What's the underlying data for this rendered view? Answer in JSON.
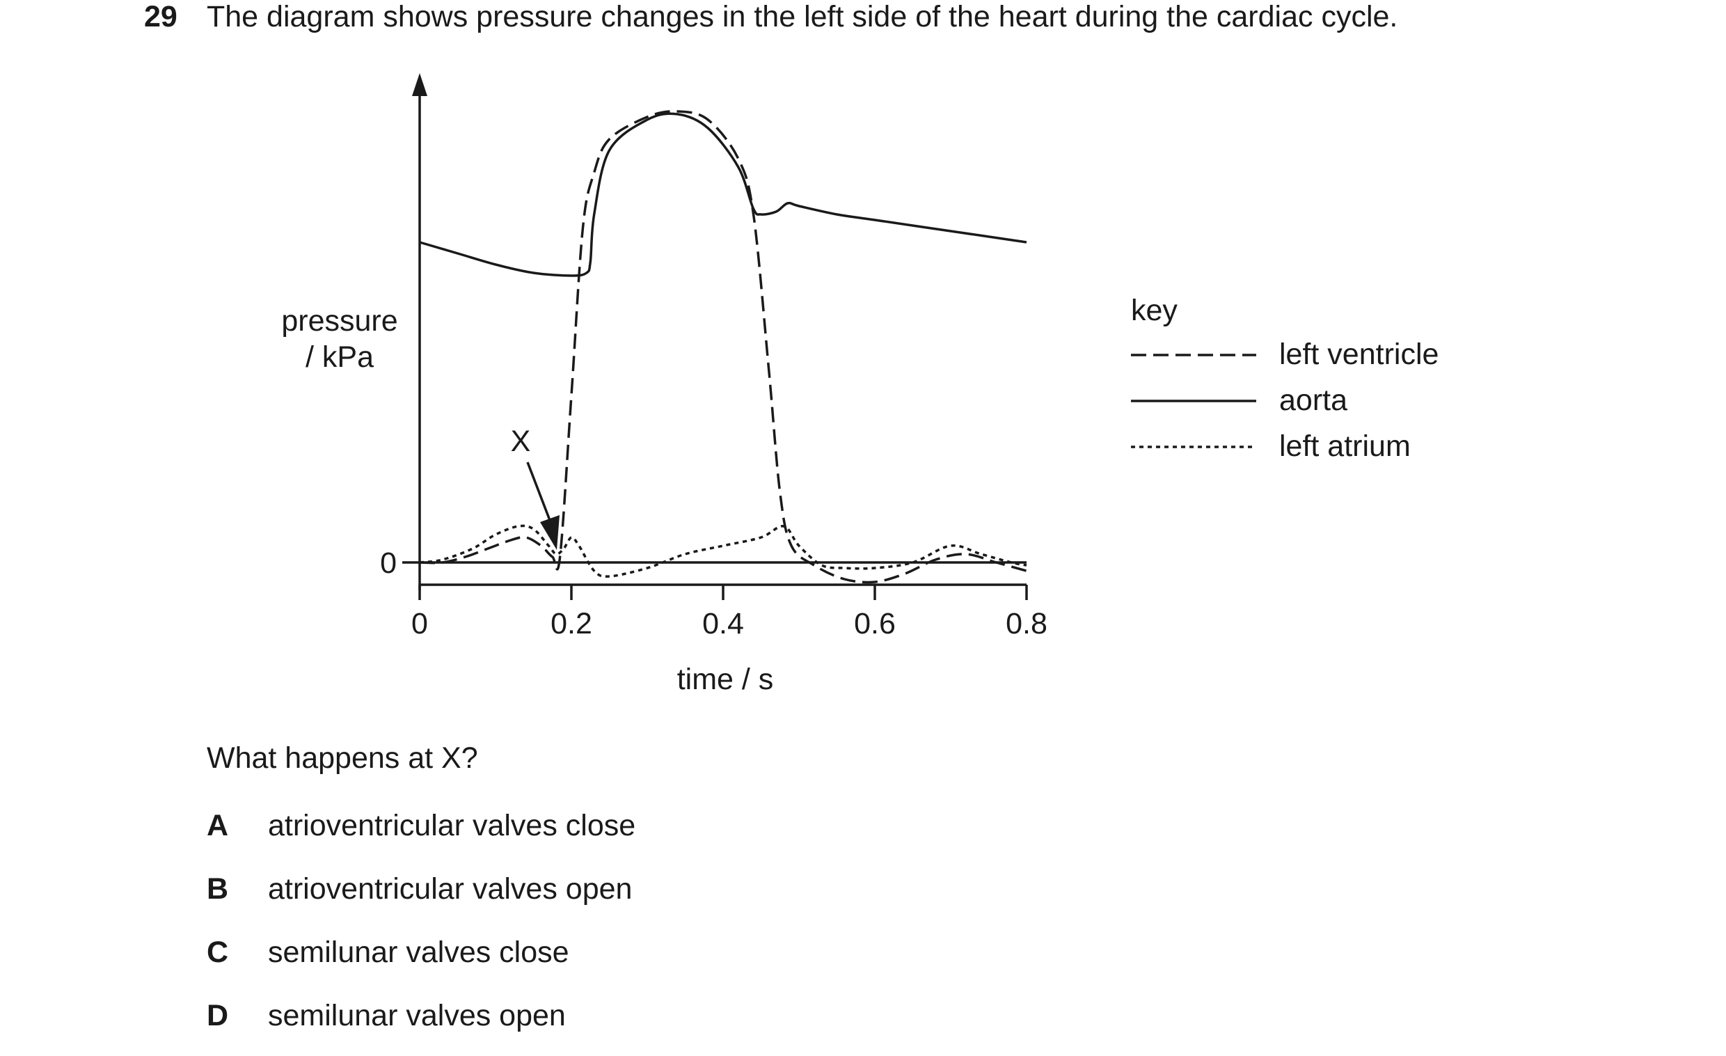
{
  "question": {
    "number": "29",
    "stem": "The diagram shows pressure changes in the left side of the heart during the cardiac cycle.",
    "prompt": "What happens at X?",
    "options": [
      {
        "letter": "A",
        "text": "atrioventricular valves close"
      },
      {
        "letter": "B",
        "text": "atrioventricular valves open"
      },
      {
        "letter": "C",
        "text": "semilunar valves close"
      },
      {
        "letter": "D",
        "text": "semilunar valves open"
      }
    ]
  },
  "diagram": {
    "ylabel_line1": "pressure",
    "ylabel_line2": "/ kPa",
    "xlabel": "time / s",
    "marker_label": "X",
    "key_title": "key"
  },
  "chart_data": {
    "type": "line",
    "title": "",
    "xlabel": "time / s",
    "ylabel": "pressure / kPa",
    "x_ticks": [
      "0",
      "0.2",
      "0.4",
      "0.6",
      "0.8"
    ],
    "y_ticks": [
      "0"
    ],
    "xlim": [
      0,
      0.8
    ],
    "ylim": [
      -1,
      16
    ],
    "grid": false,
    "legend": "right",
    "series": [
      {
        "name": "left ventricle",
        "style": "dashed",
        "x": [
          0.0,
          0.03,
          0.06,
          0.09,
          0.12,
          0.14,
          0.16,
          0.175,
          0.185,
          0.2,
          0.215,
          0.23,
          0.25,
          0.3,
          0.34,
          0.38,
          0.42,
          0.44,
          0.46,
          0.475,
          0.49,
          0.52,
          0.56,
          0.6,
          0.64,
          0.68,
          0.72,
          0.76,
          0.8
        ],
        "y": [
          0.0,
          0.0,
          0.2,
          0.5,
          0.8,
          0.9,
          0.6,
          0.2,
          0.2,
          6.0,
          12.0,
          14.0,
          15.2,
          16.0,
          16.2,
          15.9,
          14.5,
          12.5,
          7.0,
          2.5,
          0.6,
          -0.1,
          -0.6,
          -0.7,
          -0.4,
          0.1,
          0.3,
          0.0,
          -0.3
        ]
      },
      {
        "name": "aorta",
        "style": "solid",
        "x": [
          0.0,
          0.05,
          0.1,
          0.15,
          0.2,
          0.22,
          0.225,
          0.23,
          0.25,
          0.3,
          0.34,
          0.38,
          0.42,
          0.44,
          0.45,
          0.47,
          0.485,
          0.5,
          0.55,
          0.6,
          0.7,
          0.8
        ],
        "y": [
          11.5,
          11.1,
          10.7,
          10.4,
          10.3,
          10.4,
          10.8,
          12.5,
          14.8,
          15.9,
          16.1,
          15.6,
          14.2,
          12.7,
          12.5,
          12.6,
          12.9,
          12.8,
          12.5,
          12.3,
          11.9,
          11.5
        ]
      },
      {
        "name": "left atrium",
        "style": "dotted",
        "x": [
          0.0,
          0.03,
          0.07,
          0.1,
          0.13,
          0.15,
          0.17,
          0.18,
          0.19,
          0.2,
          0.21,
          0.23,
          0.25,
          0.3,
          0.35,
          0.4,
          0.45,
          0.48,
          0.5,
          0.53,
          0.56,
          0.6,
          0.65,
          0.7,
          0.74,
          0.78,
          0.8
        ],
        "y": [
          0.0,
          0.1,
          0.5,
          1.0,
          1.3,
          1.2,
          0.6,
          0.3,
          0.5,
          0.9,
          0.6,
          -0.3,
          -0.5,
          -0.2,
          0.3,
          0.6,
          0.9,
          1.3,
          0.6,
          -0.1,
          -0.2,
          -0.2,
          0.0,
          0.6,
          0.3,
          0.0,
          -0.1
        ]
      }
    ],
    "annotations": [
      {
        "text": "X",
        "points_to": {
          "x": 0.18,
          "y": 0.2
        }
      }
    ]
  }
}
